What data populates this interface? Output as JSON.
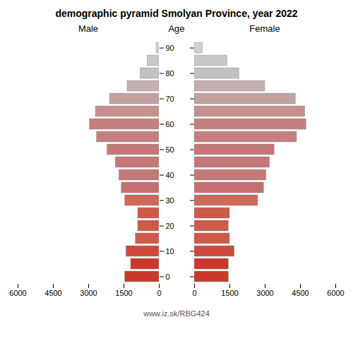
{
  "chart_data": {
    "type": "bar",
    "orientation": "horizontal",
    "title": "demographic pyramid Smolyan Province, year 2022",
    "ylabel": "Age",
    "caption": "www.iz.sk/RBG424",
    "categories": [
      "0",
      null,
      "10",
      null,
      "20",
      null,
      "30",
      null,
      "40",
      null,
      "50",
      null,
      "60",
      null,
      "70",
      null,
      "80",
      null,
      "90"
    ],
    "series": [
      {
        "name": "Male",
        "values": [
          1450,
          1200,
          1400,
          1000,
          900,
          900,
          1450,
          1600,
          1700,
          1850,
          2200,
          2650,
          2950,
          2700,
          2100,
          1350,
          800,
          500,
          120
        ],
        "colors": [
          "#c8392b",
          "#c8392b",
          "#cd4a3a",
          "#cd5a4a",
          "#cd5a4a",
          "#cd5a4a",
          "#cd6a5a",
          "#c47070",
          "#c47878",
          "#c47878",
          "#c47878",
          "#c48080",
          "#c48080",
          "#c49090",
          "#c4a0a0",
          "#c4b0b0",
          "#c4c0c0",
          "#c8c8c8",
          "#d0d0d0"
        ]
      },
      {
        "name": "Female",
        "values": [
          1450,
          1450,
          1700,
          1500,
          1450,
          1500,
          2700,
          2950,
          3050,
          3200,
          3400,
          4350,
          4750,
          4700,
          4300,
          3000,
          1900,
          1400,
          350
        ],
        "colors": [
          "#c8392b",
          "#c8392b",
          "#cd4a3a",
          "#cd5a4a",
          "#cd5a4a",
          "#cd5a4a",
          "#cd6a5a",
          "#c47070",
          "#c47878",
          "#c47878",
          "#c47878",
          "#c48080",
          "#c48080",
          "#c49090",
          "#c4a0a0",
          "#c4b0b0",
          "#c4c0c0",
          "#c8c8c8",
          "#d0d0d0"
        ]
      }
    ],
    "xlim": [
      0,
      6000
    ],
    "xticks": [
      0,
      1500,
      3000,
      4500,
      6000
    ],
    "grid": false
  }
}
